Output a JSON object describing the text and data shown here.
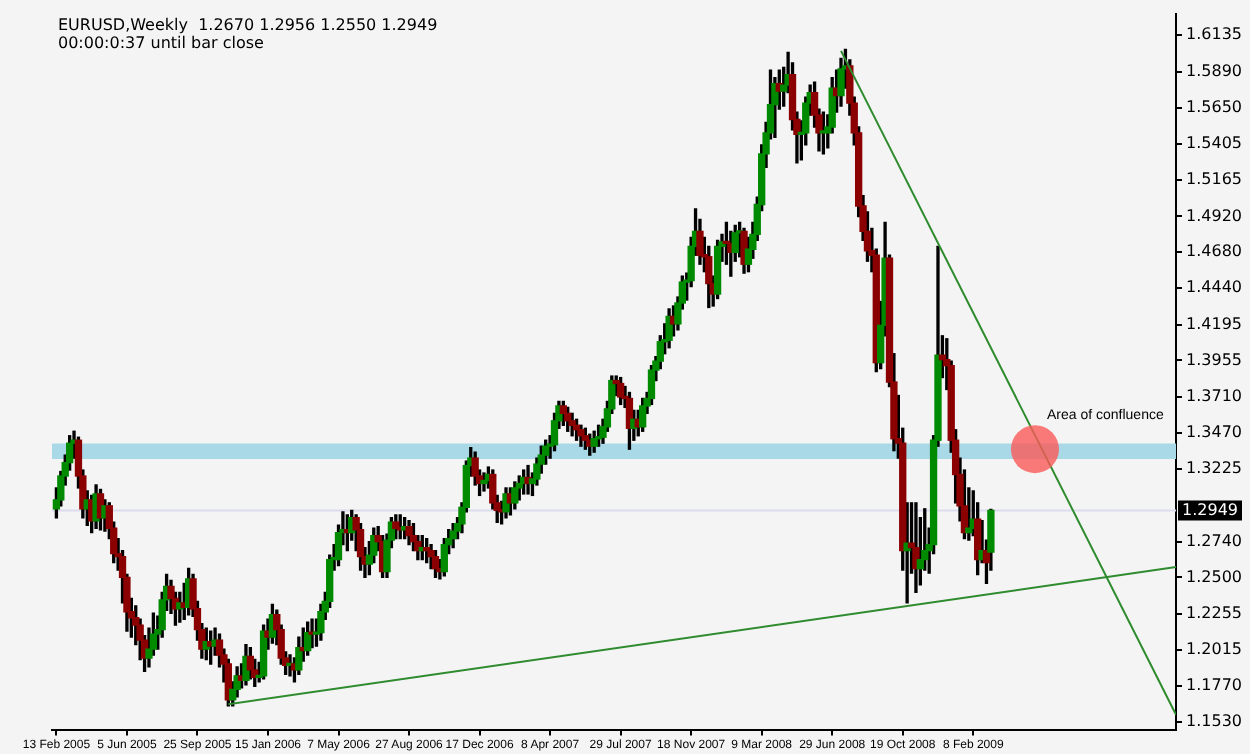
{
  "chart_data": {
    "type": "candlestick",
    "title": "EURUSD,Weekly  1.2670 1.2956 1.2550 1.2949",
    "subtitle": "00:00:0:37 until bar close",
    "x": [
      "2005-02-13",
      "2005-02-20",
      "2005-02-27",
      "2005-03-06",
      "2005-03-13",
      "2005-03-20",
      "2005-03-27",
      "2005-04-03",
      "2005-04-10",
      "2005-04-17",
      "2005-04-24",
      "2005-05-01",
      "2005-05-08",
      "2005-05-15",
      "2005-05-22",
      "2005-05-29",
      "2005-06-05",
      "2005-06-12",
      "2005-06-19",
      "2005-06-26",
      "2005-07-03",
      "2005-07-10",
      "2005-07-17",
      "2005-07-24",
      "2005-07-31",
      "2005-08-07",
      "2005-08-14",
      "2005-08-21",
      "2005-08-28",
      "2005-09-04",
      "2005-09-11",
      "2005-09-18",
      "2005-09-25",
      "2005-10-02",
      "2005-10-09",
      "2005-10-16",
      "2005-10-23",
      "2005-10-30",
      "2005-11-06",
      "2005-11-13",
      "2005-11-20",
      "2005-11-27",
      "2005-12-04",
      "2005-12-11",
      "2005-12-18",
      "2005-12-25",
      "2006-01-01",
      "2006-01-08",
      "2006-01-15",
      "2006-01-22",
      "2006-01-29",
      "2006-02-05",
      "2006-02-12",
      "2006-02-19",
      "2006-02-26",
      "2006-03-05",
      "2006-03-12",
      "2006-03-19",
      "2006-03-26",
      "2006-04-02",
      "2006-04-09",
      "2006-04-16",
      "2006-04-23",
      "2006-04-30",
      "2006-05-07",
      "2006-05-14",
      "2006-05-21",
      "2006-05-28",
      "2006-06-04",
      "2006-06-11",
      "2006-06-18",
      "2006-06-25",
      "2006-07-02",
      "2006-07-09",
      "2006-07-16",
      "2006-07-23",
      "2006-07-30",
      "2006-08-06",
      "2006-08-13",
      "2006-08-20",
      "2006-08-27",
      "2006-09-03",
      "2006-09-10",
      "2006-09-17",
      "2006-09-24",
      "2006-10-01",
      "2006-10-08",
      "2006-10-15",
      "2006-10-22",
      "2006-10-29",
      "2006-11-05",
      "2006-11-12",
      "2006-11-19",
      "2006-11-26",
      "2006-12-03",
      "2006-12-10",
      "2006-12-17",
      "2006-12-24",
      "2006-12-31",
      "2007-01-07",
      "2007-01-14",
      "2007-01-21",
      "2007-01-28",
      "2007-02-04",
      "2007-02-11",
      "2007-02-18",
      "2007-02-25",
      "2007-03-04",
      "2007-03-11",
      "2007-03-18",
      "2007-03-25",
      "2007-04-01",
      "2007-04-08",
      "2007-04-15",
      "2007-04-22",
      "2007-04-29",
      "2007-05-06",
      "2007-05-13",
      "2007-05-20",
      "2007-05-27",
      "2007-06-03",
      "2007-06-10",
      "2007-06-17",
      "2007-06-24",
      "2007-07-01",
      "2007-07-08",
      "2007-07-15",
      "2007-07-22",
      "2007-07-29",
      "2007-08-05",
      "2007-08-12",
      "2007-08-19",
      "2007-08-26",
      "2007-09-02",
      "2007-09-09",
      "2007-09-16",
      "2007-09-23",
      "2007-09-30",
      "2007-10-07",
      "2007-10-14",
      "2007-10-21",
      "2007-10-28",
      "2007-11-04",
      "2007-11-11",
      "2007-11-18",
      "2007-11-25",
      "2007-12-02",
      "2007-12-09",
      "2007-12-16",
      "2007-12-23",
      "2007-12-30",
      "2008-01-06",
      "2008-01-13",
      "2008-01-20",
      "2008-01-27",
      "2008-02-03",
      "2008-02-10",
      "2008-02-17",
      "2008-02-24",
      "2008-03-02",
      "2008-03-09",
      "2008-03-16",
      "2008-03-23",
      "2008-03-30",
      "2008-04-06",
      "2008-04-13",
      "2008-04-20",
      "2008-04-27",
      "2008-05-04",
      "2008-05-11",
      "2008-05-18",
      "2008-05-25",
      "2008-06-01",
      "2008-06-08",
      "2008-06-15",
      "2008-06-22",
      "2008-06-29",
      "2008-07-06",
      "2008-07-13",
      "2008-07-20",
      "2008-07-27",
      "2008-08-03",
      "2008-08-10",
      "2008-08-17",
      "2008-08-24",
      "2008-08-31",
      "2008-09-07",
      "2008-09-14",
      "2008-09-21",
      "2008-09-28",
      "2008-10-05",
      "2008-10-12",
      "2008-10-19",
      "2008-10-26",
      "2008-11-02",
      "2008-11-09",
      "2008-11-16",
      "2008-11-23",
      "2008-11-30",
      "2008-12-07",
      "2008-12-14",
      "2008-12-21",
      "2008-12-28",
      "2009-01-04",
      "2009-01-11",
      "2009-01-18",
      "2009-01-25",
      "2009-02-01",
      "2009-02-08",
      "2009-02-15",
      "2009-02-22",
      "2009-03-01",
      "2009-03-08"
    ],
    "ohlc": [
      [
        1.296,
        1.31,
        1.29,
        1.302
      ],
      [
        1.302,
        1.321,
        1.298,
        1.318
      ],
      [
        1.318,
        1.332,
        1.312,
        1.327
      ],
      [
        1.327,
        1.345,
        1.322,
        1.34
      ],
      [
        1.34,
        1.348,
        1.33,
        1.342
      ],
      [
        1.342,
        1.344,
        1.31,
        1.318
      ],
      [
        1.318,
        1.322,
        1.29,
        1.296
      ],
      [
        1.296,
        1.308,
        1.285,
        1.302
      ],
      [
        1.302,
        1.305,
        1.28,
        1.288
      ],
      [
        1.288,
        1.312,
        1.283,
        1.306
      ],
      [
        1.306,
        1.309,
        1.282,
        1.29
      ],
      [
        1.29,
        1.302,
        1.281,
        1.298
      ],
      [
        1.298,
        1.3,
        1.276,
        1.283
      ],
      [
        1.283,
        1.287,
        1.26,
        1.266
      ],
      [
        1.266,
        1.276,
        1.255,
        1.264
      ],
      [
        1.264,
        1.268,
        1.233,
        1.25
      ],
      [
        1.25,
        1.252,
        1.214,
        1.227
      ],
      [
        1.227,
        1.236,
        1.21,
        1.223
      ],
      [
        1.223,
        1.231,
        1.205,
        1.218
      ],
      [
        1.218,
        1.222,
        1.195,
        1.208
      ],
      [
        1.208,
        1.211,
        1.187,
        1.196
      ],
      [
        1.196,
        1.216,
        1.19,
        1.202
      ],
      [
        1.202,
        1.226,
        1.198,
        1.212
      ],
      [
        1.212,
        1.224,
        1.202,
        1.215
      ],
      [
        1.215,
        1.24,
        1.21,
        1.235
      ],
      [
        1.235,
        1.252,
        1.228,
        1.244
      ],
      [
        1.244,
        1.248,
        1.226,
        1.236
      ],
      [
        1.236,
        1.24,
        1.218,
        1.229
      ],
      [
        1.229,
        1.24,
        1.22,
        1.233
      ],
      [
        1.233,
        1.246,
        1.222,
        1.23
      ],
      [
        1.23,
        1.256,
        1.225,
        1.249
      ],
      [
        1.249,
        1.252,
        1.224,
        1.229
      ],
      [
        1.229,
        1.234,
        1.208,
        1.215
      ],
      [
        1.215,
        1.219,
        1.196,
        1.202
      ],
      [
        1.202,
        1.216,
        1.195,
        1.207
      ],
      [
        1.207,
        1.214,
        1.192,
        1.204
      ],
      [
        1.204,
        1.216,
        1.198,
        1.208
      ],
      [
        1.208,
        1.212,
        1.19,
        1.198
      ],
      [
        1.198,
        1.202,
        1.18,
        1.192
      ],
      [
        1.192,
        1.195,
        1.164,
        1.168
      ],
      [
        1.168,
        1.18,
        1.164,
        1.175
      ],
      [
        1.175,
        1.19,
        1.17,
        1.184
      ],
      [
        1.184,
        1.192,
        1.176,
        1.181
      ],
      [
        1.181,
        1.205,
        1.178,
        1.197
      ],
      [
        1.197,
        1.203,
        1.182,
        1.188
      ],
      [
        1.188,
        1.195,
        1.177,
        1.183
      ],
      [
        1.183,
        1.193,
        1.18,
        1.184
      ],
      [
        1.184,
        1.218,
        1.182,
        1.214
      ],
      [
        1.214,
        1.222,
        1.202,
        1.21
      ],
      [
        1.21,
        1.232,
        1.206,
        1.225
      ],
      [
        1.225,
        1.228,
        1.205,
        1.215
      ],
      [
        1.215,
        1.218,
        1.192,
        1.196
      ],
      [
        1.196,
        1.2,
        1.185,
        1.191
      ],
      [
        1.191,
        1.198,
        1.184,
        1.192
      ],
      [
        1.192,
        1.196,
        1.18,
        1.188
      ],
      [
        1.188,
        1.21,
        1.185,
        1.203
      ],
      [
        1.203,
        1.216,
        1.194,
        1.201
      ],
      [
        1.201,
        1.22,
        1.198,
        1.213
      ],
      [
        1.213,
        1.222,
        1.203,
        1.212
      ],
      [
        1.212,
        1.222,
        1.204,
        1.213
      ],
      [
        1.213,
        1.232,
        1.208,
        1.227
      ],
      [
        1.227,
        1.24,
        1.222,
        1.234
      ],
      [
        1.234,
        1.265,
        1.23,
        1.262
      ],
      [
        1.262,
        1.272,
        1.255,
        1.262
      ],
      [
        1.262,
        1.285,
        1.258,
        1.28
      ],
      [
        1.28,
        1.294,
        1.272,
        1.282
      ],
      [
        1.282,
        1.292,
        1.268,
        1.28
      ],
      [
        1.28,
        1.295,
        1.275,
        1.29
      ],
      [
        1.29,
        1.292,
        1.268,
        1.282
      ],
      [
        1.282,
        1.286,
        1.255,
        1.264
      ],
      [
        1.264,
        1.27,
        1.25,
        1.259
      ],
      [
        1.259,
        1.274,
        1.252,
        1.265
      ],
      [
        1.265,
        1.283,
        1.26,
        1.278
      ],
      [
        1.278,
        1.284,
        1.268,
        1.274
      ],
      [
        1.274,
        1.278,
        1.25,
        1.254
      ],
      [
        1.254,
        1.279,
        1.25,
        1.275
      ],
      [
        1.275,
        1.29,
        1.27,
        1.287
      ],
      [
        1.287,
        1.292,
        1.276,
        1.283
      ],
      [
        1.283,
        1.292,
        1.276,
        1.282
      ],
      [
        1.282,
        1.29,
        1.276,
        1.284
      ],
      [
        1.284,
        1.288,
        1.272,
        1.278
      ],
      [
        1.278,
        1.286,
        1.268,
        1.274
      ],
      [
        1.274,
        1.278,
        1.262,
        1.268
      ],
      [
        1.268,
        1.278,
        1.262,
        1.27
      ],
      [
        1.27,
        1.276,
        1.26,
        1.268
      ],
      [
        1.268,
        1.272,
        1.256,
        1.264
      ],
      [
        1.264,
        1.268,
        1.25,
        1.256
      ],
      [
        1.256,
        1.262,
        1.249,
        1.254
      ],
      [
        1.254,
        1.276,
        1.251,
        1.272
      ],
      [
        1.272,
        1.282,
        1.266,
        1.276
      ],
      [
        1.276,
        1.286,
        1.27,
        1.281
      ],
      [
        1.281,
        1.29,
        1.276,
        1.286
      ],
      [
        1.286,
        1.3,
        1.28,
        1.297
      ],
      [
        1.297,
        1.328,
        1.294,
        1.325
      ],
      [
        1.325,
        1.337,
        1.318,
        1.33
      ],
      [
        1.33,
        1.334,
        1.312,
        1.318
      ],
      [
        1.318,
        1.322,
        1.305,
        1.313
      ],
      [
        1.313,
        1.32,
        1.308,
        1.315
      ],
      [
        1.315,
        1.324,
        1.31,
        1.319
      ],
      [
        1.319,
        1.322,
        1.296,
        1.3
      ],
      [
        1.3,
        1.305,
        1.287,
        1.295
      ],
      [
        1.295,
        1.301,
        1.286,
        1.294
      ],
      [
        1.294,
        1.31,
        1.29,
        1.306
      ],
      [
        1.306,
        1.31,
        1.292,
        1.3
      ],
      [
        1.3,
        1.314,
        1.296,
        1.31
      ],
      [
        1.31,
        1.318,
        1.302,
        1.313
      ],
      [
        1.313,
        1.322,
        1.306,
        1.317
      ],
      [
        1.317,
        1.325,
        1.306,
        1.313
      ],
      [
        1.313,
        1.32,
        1.305,
        1.316
      ],
      [
        1.316,
        1.33,
        1.312,
        1.326
      ],
      [
        1.326,
        1.338,
        1.32,
        1.332
      ],
      [
        1.332,
        1.342,
        1.326,
        1.338
      ],
      [
        1.338,
        1.345,
        1.33,
        1.339
      ],
      [
        1.339,
        1.36,
        1.335,
        1.355
      ],
      [
        1.355,
        1.368,
        1.35,
        1.365
      ],
      [
        1.365,
        1.368,
        1.352,
        1.36
      ],
      [
        1.36,
        1.364,
        1.348,
        1.355
      ],
      [
        1.355,
        1.36,
        1.345,
        1.352
      ],
      [
        1.352,
        1.356,
        1.342,
        1.349
      ],
      [
        1.349,
        1.352,
        1.338,
        1.345
      ],
      [
        1.345,
        1.35,
        1.336,
        1.342
      ],
      [
        1.342,
        1.346,
        1.332,
        1.338
      ],
      [
        1.338,
        1.348,
        1.334,
        1.343
      ],
      [
        1.343,
        1.352,
        1.338,
        1.344
      ],
      [
        1.344,
        1.356,
        1.34,
        1.351
      ],
      [
        1.351,
        1.368,
        1.348,
        1.363
      ],
      [
        1.363,
        1.385,
        1.36,
        1.382
      ],
      [
        1.382,
        1.385,
        1.372,
        1.38
      ],
      [
        1.38,
        1.384,
        1.366,
        1.371
      ],
      [
        1.371,
        1.378,
        1.364,
        1.37
      ],
      [
        1.37,
        1.374,
        1.336,
        1.35
      ],
      [
        1.35,
        1.362,
        1.342,
        1.356
      ],
      [
        1.356,
        1.362,
        1.345,
        1.351
      ],
      [
        1.351,
        1.37,
        1.348,
        1.365
      ],
      [
        1.365,
        1.374,
        1.36,
        1.37
      ],
      [
        1.37,
        1.392,
        1.366,
        1.389
      ],
      [
        1.389,
        1.398,
        1.382,
        1.395
      ],
      [
        1.395,
        1.412,
        1.39,
        1.408
      ],
      [
        1.408,
        1.42,
        1.4,
        1.409
      ],
      [
        1.409,
        1.43,
        1.404,
        1.425
      ],
      [
        1.425,
        1.432,
        1.412,
        1.42
      ],
      [
        1.42,
        1.438,
        1.416,
        1.434
      ],
      [
        1.434,
        1.452,
        1.43,
        1.448
      ],
      [
        1.448,
        1.454,
        1.436,
        1.449
      ],
      [
        1.449,
        1.478,
        1.445,
        1.472
      ],
      [
        1.472,
        1.497,
        1.466,
        1.482
      ],
      [
        1.482,
        1.49,
        1.46,
        1.466
      ],
      [
        1.466,
        1.478,
        1.455,
        1.465
      ],
      [
        1.465,
        1.472,
        1.431,
        1.447
      ],
      [
        1.447,
        1.452,
        1.432,
        1.44
      ],
      [
        1.44,
        1.476,
        1.437,
        1.472
      ],
      [
        1.472,
        1.48,
        1.462,
        1.475
      ],
      [
        1.475,
        1.488,
        1.46,
        1.474
      ],
      [
        1.474,
        1.482,
        1.452,
        1.468
      ],
      [
        1.468,
        1.486,
        1.462,
        1.481
      ],
      [
        1.481,
        1.488,
        1.465,
        1.482
      ],
      [
        1.482,
        1.484,
        1.454,
        1.46
      ],
      [
        1.46,
        1.478,
        1.455,
        1.47
      ],
      [
        1.47,
        1.488,
        1.464,
        1.48
      ],
      [
        1.48,
        1.505,
        1.476,
        1.5
      ],
      [
        1.5,
        1.54,
        1.496,
        1.534
      ],
      [
        1.534,
        1.555,
        1.525,
        1.548
      ],
      [
        1.548,
        1.59,
        1.544,
        1.567
      ],
      [
        1.567,
        1.585,
        1.545,
        1.581
      ],
      [
        1.581,
        1.59,
        1.564,
        1.576
      ],
      [
        1.576,
        1.592,
        1.566,
        1.58
      ],
      [
        1.58,
        1.602,
        1.575,
        1.587
      ],
      [
        1.587,
        1.595,
        1.55,
        1.557
      ],
      [
        1.557,
        1.562,
        1.528,
        1.547
      ],
      [
        1.547,
        1.556,
        1.53,
        1.548
      ],
      [
        1.548,
        1.572,
        1.54,
        1.568
      ],
      [
        1.568,
        1.58,
        1.56,
        1.575
      ],
      [
        1.575,
        1.582,
        1.552,
        1.56
      ],
      [
        1.56,
        1.564,
        1.536,
        1.548
      ],
      [
        1.548,
        1.562,
        1.534,
        1.548
      ],
      [
        1.548,
        1.56,
        1.538,
        1.552
      ],
      [
        1.552,
        1.585,
        1.548,
        1.578
      ],
      [
        1.578,
        1.59,
        1.562,
        1.573
      ],
      [
        1.573,
        1.598,
        1.566,
        1.591
      ],
      [
        1.591,
        1.604,
        1.578,
        1.593
      ],
      [
        1.593,
        1.597,
        1.56,
        1.568
      ],
      [
        1.568,
        1.572,
        1.54,
        1.548
      ],
      [
        1.548,
        1.552,
        1.492,
        1.499
      ],
      [
        1.499,
        1.506,
        1.476,
        1.482
      ],
      [
        1.482,
        1.495,
        1.462,
        1.469
      ],
      [
        1.469,
        1.484,
        1.455,
        1.466
      ],
      [
        1.466,
        1.47,
        1.388,
        1.394
      ],
      [
        1.394,
        1.435,
        1.39,
        1.419
      ],
      [
        1.419,
        1.488,
        1.412,
        1.464
      ],
      [
        1.464,
        1.466,
        1.378,
        1.381
      ],
      [
        1.381,
        1.4,
        1.335,
        1.343
      ],
      [
        1.343,
        1.372,
        1.33,
        1.34
      ],
      [
        1.34,
        1.35,
        1.255,
        1.268
      ],
      [
        1.268,
        1.3,
        1.233,
        1.273
      ],
      [
        1.273,
        1.3,
        1.253,
        1.27
      ],
      [
        1.27,
        1.3,
        1.24,
        1.256
      ],
      [
        1.256,
        1.29,
        1.245,
        1.262
      ],
      [
        1.262,
        1.296,
        1.255,
        1.268
      ],
      [
        1.268,
        1.283,
        1.253,
        1.272
      ],
      [
        1.272,
        1.345,
        1.266,
        1.342
      ],
      [
        1.342,
        1.472,
        1.338,
        1.399
      ],
      [
        1.399,
        1.412,
        1.384,
        1.396
      ],
      [
        1.396,
        1.41,
        1.376,
        1.392
      ],
      [
        1.392,
        1.395,
        1.334,
        1.342
      ],
      [
        1.342,
        1.349,
        1.3,
        1.319
      ],
      [
        1.319,
        1.33,
        1.288,
        1.298
      ],
      [
        1.298,
        1.322,
        1.276,
        1.28
      ],
      [
        1.28,
        1.31,
        1.275,
        1.283
      ],
      [
        1.283,
        1.308,
        1.278,
        1.289
      ],
      [
        1.289,
        1.3,
        1.252,
        1.262
      ],
      [
        1.262,
        1.288,
        1.26,
        1.268
      ],
      [
        1.268,
        1.275,
        1.246,
        1.26
      ],
      [
        1.267,
        1.2956,
        1.255,
        1.2949
      ]
    ],
    "series": [
      {
        "type": "line",
        "x": [
          "2005-11-13",
          "2009-12-27"
        ],
        "values": [
          1.165,
          1.257
        ],
        "color": "#2e8b2e"
      },
      {
        "type": "line",
        "x": [
          "2008-07-13",
          "2009-12-27"
        ],
        "values": [
          1.603,
          1.158
        ],
        "color": "#2e8b2e"
      }
    ],
    "xlim": [
      "2005-02-06",
      "2009-12-27"
    ],
    "xticks": [
      {
        "value": "2005-02-13",
        "label": "13 Feb 2005"
      },
      {
        "value": "2005-06-05",
        "label": "5 Jun 2005"
      },
      {
        "value": "2005-09-25",
        "label": "25 Sep 2005"
      },
      {
        "value": "2006-01-15",
        "label": "15 Jan 2006"
      },
      {
        "value": "2006-05-07",
        "label": "7 May 2006"
      },
      {
        "value": "2006-08-27",
        "label": "27 Aug 2006"
      },
      {
        "value": "2006-12-17",
        "label": "17 Dec 2006"
      },
      {
        "value": "2007-04-08",
        "label": "8 Apr 2007"
      },
      {
        "value": "2007-07-29",
        "label": "29 Jul 2007"
      },
      {
        "value": "2007-11-18",
        "label": "18 Nov 2007"
      },
      {
        "value": "2008-03-09",
        "label": "9 Mar 2008"
      },
      {
        "value": "2008-06-29",
        "label": "29 Jun 2008"
      },
      {
        "value": "2008-10-19",
        "label": "19 Oct 2008"
      },
      {
        "value": "2009-02-08",
        "label": "8 Feb 2009"
      }
    ],
    "ylim": [
      1.148,
      1.628
    ],
    "yticks": [
      1.6135,
      {
        "value": 1.589,
        "label": "1.5890"
      },
      {
        "value": 1.565,
        "label": "1.5650"
      },
      1.5405,
      1.5165,
      {
        "value": 1.492,
        "label": "1.4920"
      },
      {
        "value": 1.468,
        "label": "1.4680"
      },
      {
        "value": 1.444,
        "label": "1.4440"
      },
      1.4195,
      1.3955,
      {
        "value": 1.371,
        "label": "1.3710"
      },
      {
        "value": 1.347,
        "label": "1.3470"
      },
      1.3225,
      {
        "value": 1.274,
        "label": "1.2740"
      },
      {
        "value": 1.25,
        "label": "1.2500"
      },
      1.2255,
      1.2015,
      {
        "value": 1.177,
        "label": "1.1770"
      },
      {
        "value": 1.153,
        "label": "1.1530"
      }
    ],
    "bands": [
      {
        "axis": "y",
        "from": 1.3294,
        "to": 1.3398,
        "color": "#a9d8e6"
      }
    ],
    "ref_lines": [
      {
        "axis": "y",
        "value": 1.2949,
        "label": "1.2949",
        "color": "#dcdcee"
      }
    ],
    "annotations": [
      {
        "text": "Area of confluence",
        "x": "2009-05-17",
        "y": 1.336
      }
    ]
  }
}
